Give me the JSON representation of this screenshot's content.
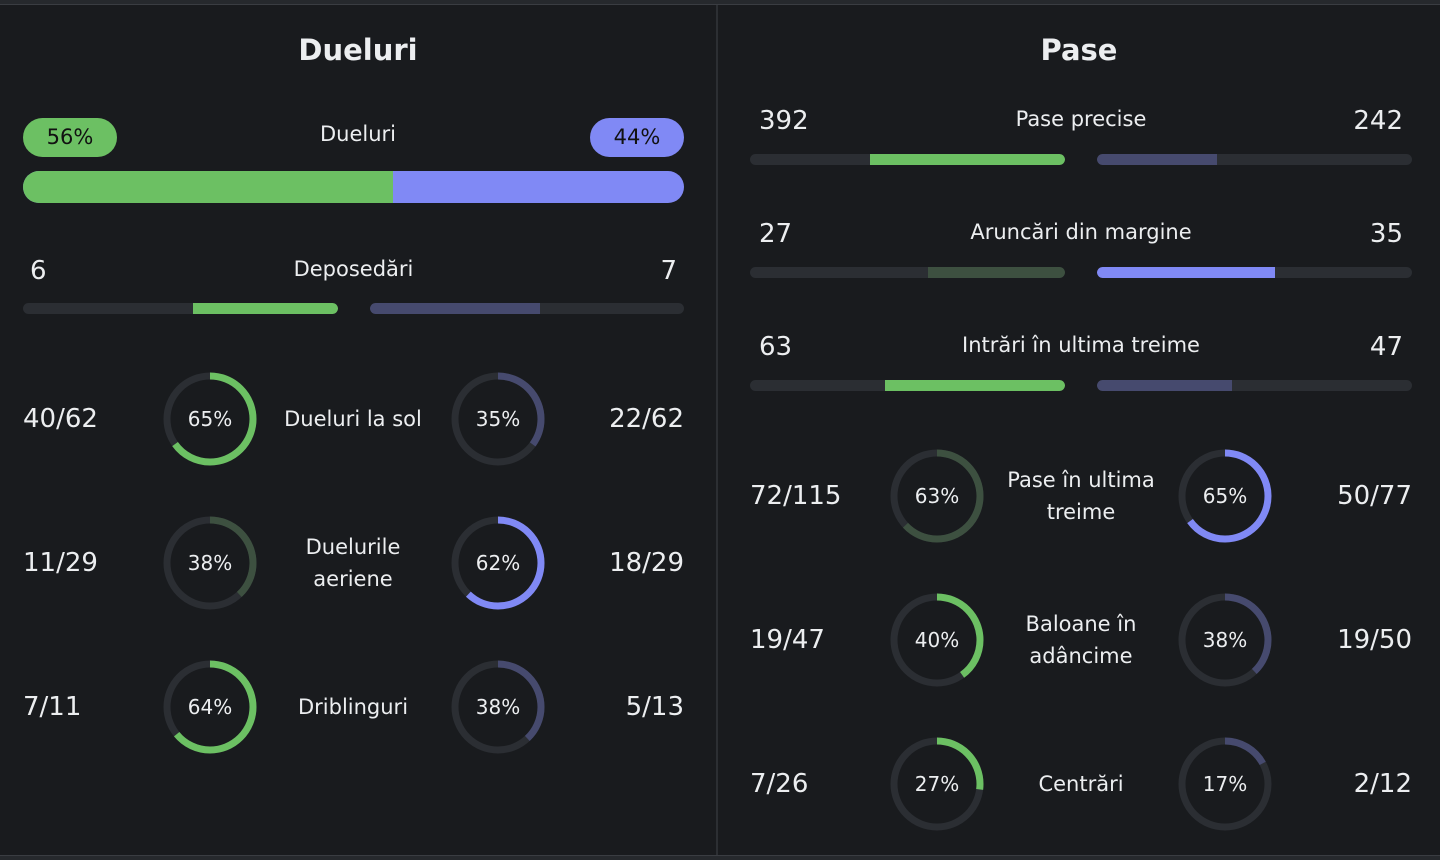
{
  "duels": {
    "title": "Dueluri",
    "summary": {
      "label": "Dueluri",
      "home_pct": "56%",
      "away_pct": "44%",
      "home_share": 0.56
    },
    "bars": [
      {
        "label": "Deposedări",
        "home": "6",
        "away": "7",
        "home_fill": 0.46,
        "away_fill": 0.54,
        "home_color": "#6cc063",
        "away_color": "#464a6e"
      }
    ],
    "rings": [
      {
        "label": "Dueluri la sol",
        "home": "40/62",
        "home_pct": "65%",
        "home_value": 0.65,
        "home_color": "#6cc063",
        "away": "22/62",
        "away_pct": "35%",
        "away_value": 0.35,
        "away_color": "#464a6e"
      },
      {
        "label": "Duelurile aeriene",
        "home": "11/29",
        "home_pct": "38%",
        "home_value": 0.38,
        "home_color": "#3d5040",
        "away": "18/29",
        "away_pct": "62%",
        "away_value": 0.62,
        "away_color": "#8089f5"
      },
      {
        "label": "Driblinguri",
        "home": "7/11",
        "home_pct": "64%",
        "home_value": 0.64,
        "home_color": "#6cc063",
        "away": "5/13",
        "away_pct": "38%",
        "away_value": 0.38,
        "away_color": "#464a6e"
      }
    ]
  },
  "passes": {
    "title": "Pase",
    "bars": [
      {
        "label": "Pase precise",
        "home": "392",
        "away": "242",
        "home_fill": 0.62,
        "away_fill": 0.38,
        "home_color": "#6cc063",
        "away_color": "#464a6e"
      },
      {
        "label": "Aruncări din margine",
        "home": "27",
        "away": "35",
        "home_fill": 0.435,
        "away_fill": 0.565,
        "home_color": "#3d5040",
        "away_color": "#8089f5"
      },
      {
        "label": "Intrări în ultima treime",
        "home": "63",
        "away": "47",
        "home_fill": 0.573,
        "away_fill": 0.427,
        "home_color": "#6cc063",
        "away_color": "#464a6e"
      }
    ],
    "rings": [
      {
        "label": "Pase în ultima treime",
        "home": "72/115",
        "home_pct": "63%",
        "home_value": 0.63,
        "home_color": "#3d5040",
        "away": "50/77",
        "away_pct": "65%",
        "away_value": 0.65,
        "away_color": "#8089f5"
      },
      {
        "label": "Baloane în adâncime",
        "home": "19/47",
        "home_pct": "40%",
        "home_value": 0.4,
        "home_color": "#6cc063",
        "away": "19/50",
        "away_pct": "38%",
        "away_value": 0.38,
        "away_color": "#464a6e"
      },
      {
        "label": "Centrări",
        "home": "7/26",
        "home_pct": "27%",
        "home_value": 0.27,
        "home_color": "#6cc063",
        "away": "2/12",
        "away_pct": "17%",
        "away_value": 0.17,
        "away_color": "#464a6e"
      }
    ]
  }
}
